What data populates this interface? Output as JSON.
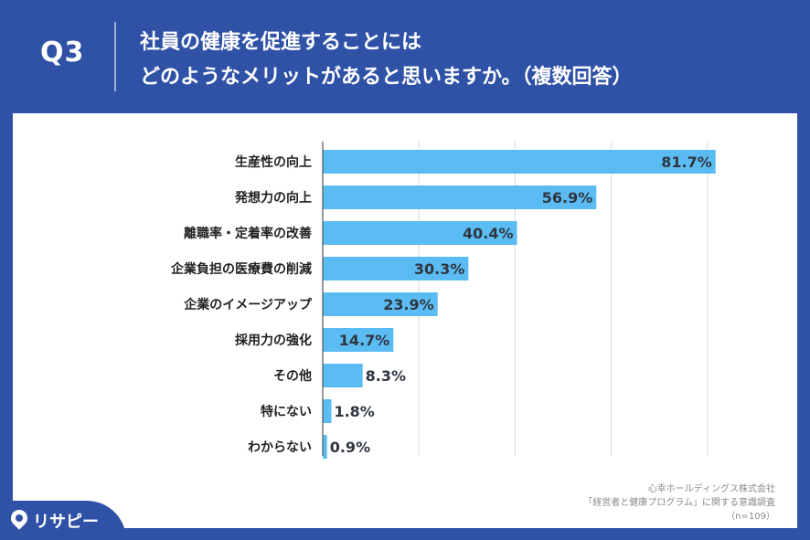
{
  "header": {
    "question": "Q3",
    "title_line1": "社員の健康を促進することには",
    "title_line2": "どのようなメリットがあると思いますか。（複数回答）"
  },
  "colors": {
    "background": "#2F52A7",
    "bar": "#5BBCF4",
    "grid": "#d9d9d9",
    "axis": "#555555",
    "label": "#222222"
  },
  "source": {
    "line1": "心幸ホールディングス株式会社",
    "line2": "「経営者と健康プログラム」に関する意識調査",
    "line3": "（n=109）"
  },
  "logo": {
    "text": "リサピー",
    "icon": "location-pin-icon"
  },
  "chart_data": {
    "type": "bar",
    "orientation": "horizontal",
    "categories": [
      "生産性の向上",
      "発想力の向上",
      "離職率・定着率の改善",
      "企業負担の医療費の削減",
      "企業のイメージアップ",
      "採用力の強化",
      "その他",
      "特にない",
      "わからない"
    ],
    "values": [
      81.7,
      56.9,
      40.4,
      30.3,
      23.9,
      14.7,
      8.3,
      1.8,
      0.9
    ],
    "value_labels": [
      "81.7%",
      "56.9%",
      "40.4%",
      "30.3%",
      "23.9%",
      "14.7%",
      "8.3%",
      "1.8%",
      "0.9%"
    ],
    "xlim": [
      0,
      100
    ],
    "grid": true,
    "grid_step": 20,
    "tick_labels_visible": false
  }
}
